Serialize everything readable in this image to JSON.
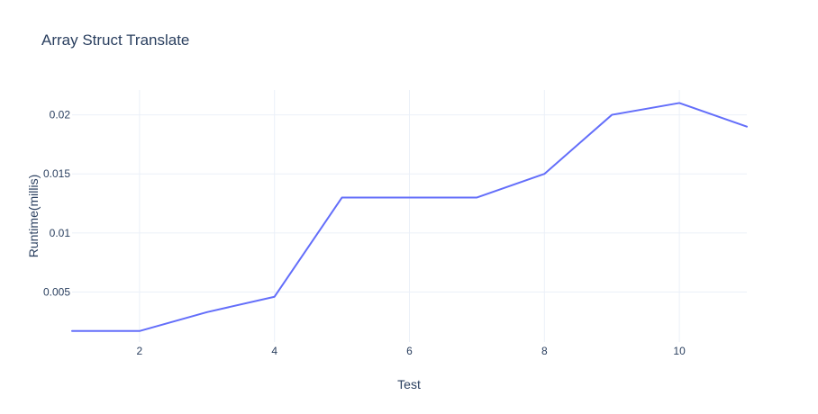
{
  "chart_data": {
    "type": "line",
    "title": "Array Struct Translate",
    "xlabel": "Test",
    "ylabel": "Runtime(millis)",
    "x": [
      1,
      2,
      3,
      4,
      5,
      6,
      7,
      8,
      9,
      10,
      11
    ],
    "series": [
      {
        "values": [
          0.0017,
          0.0017,
          0.0033,
          0.0046,
          0.013,
          0.013,
          0.013,
          0.015,
          0.02,
          0.021,
          0.019
        ],
        "color": "#636efa"
      }
    ],
    "xlim": [
      1,
      11
    ],
    "ylim": [
      0.00077,
      0.0221
    ],
    "xticks": [
      2,
      4,
      6,
      8,
      10
    ],
    "xtick_labels": [
      "2",
      "4",
      "6",
      "8",
      "10"
    ],
    "yticks": [
      0.005,
      0.01,
      0.015,
      0.02
    ],
    "ytick_labels": [
      "0.005",
      "0.01",
      "0.015",
      "0.02"
    ],
    "grid": true,
    "legend": "none"
  }
}
